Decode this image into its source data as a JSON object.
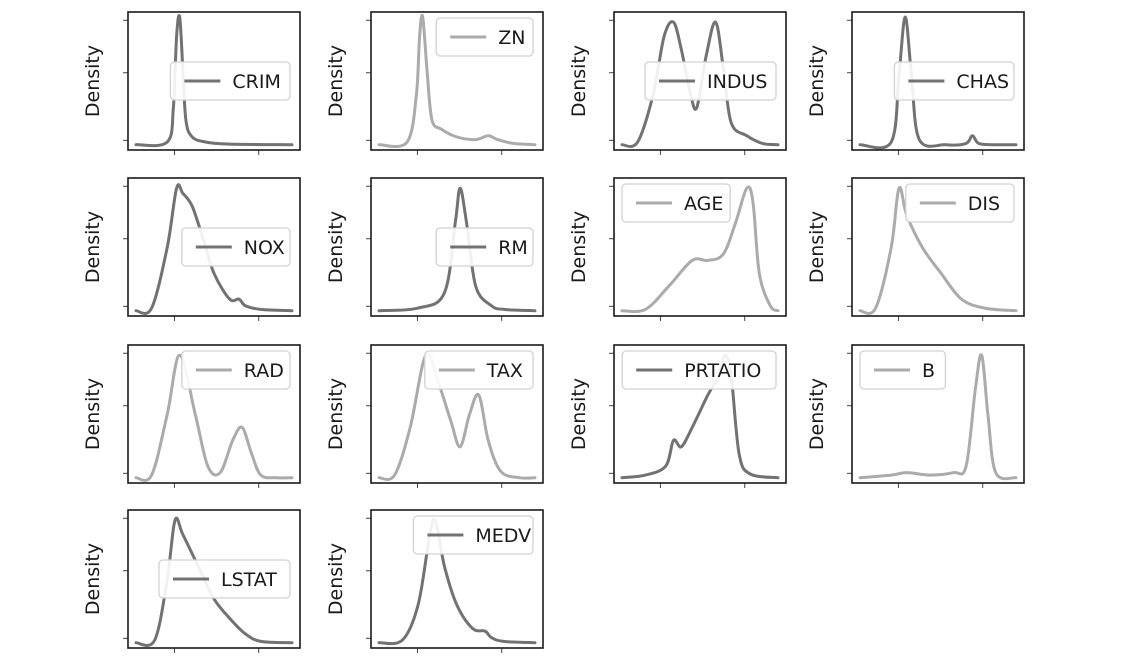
{
  "figure": {
    "ylabel": "Density"
  },
  "colors": {
    "dark": "#727272",
    "light": "#ababab"
  },
  "chart_data": [
    {
      "type": "line",
      "series": [
        {
          "name": "CRIM",
          "shade": "dark",
          "shape": [
            [
              0,
              0.01
            ],
            [
              0.2,
              0.03
            ],
            [
              0.24,
              0.3
            ],
            [
              0.26,
              0.85
            ],
            [
              0.28,
              1.0
            ],
            [
              0.3,
              0.6
            ],
            [
              0.32,
              0.2
            ],
            [
              0.36,
              0.07
            ],
            [
              0.45,
              0.03
            ],
            [
              0.6,
              0.015
            ],
            [
              1,
              0.01
            ]
          ]
        }
      ],
      "legend": "center-right",
      "grid": false
    },
    {
      "type": "line",
      "series": [
        {
          "name": "ZN",
          "shade": "light",
          "shape": [
            [
              0,
              0.01
            ],
            [
              0.18,
              0.03
            ],
            [
              0.24,
              0.4
            ],
            [
              0.26,
              0.85
            ],
            [
              0.28,
              1.0
            ],
            [
              0.31,
              0.55
            ],
            [
              0.34,
              0.2
            ],
            [
              0.4,
              0.13
            ],
            [
              0.5,
              0.07
            ],
            [
              0.62,
              0.05
            ],
            [
              0.7,
              0.08
            ],
            [
              0.76,
              0.05
            ],
            [
              0.86,
              0.02
            ],
            [
              1,
              0.01
            ]
          ]
        }
      ],
      "legend": "upper-right",
      "grid": false
    },
    {
      "type": "line",
      "series": [
        {
          "name": "INDUS",
          "shade": "dark",
          "shape": [
            [
              0,
              0.01
            ],
            [
              0.1,
              0.03
            ],
            [
              0.2,
              0.4
            ],
            [
              0.27,
              0.85
            ],
            [
              0.33,
              0.96
            ],
            [
              0.38,
              0.75
            ],
            [
              0.44,
              0.4
            ],
            [
              0.48,
              0.3
            ],
            [
              0.54,
              0.7
            ],
            [
              0.6,
              0.96
            ],
            [
              0.65,
              0.6
            ],
            [
              0.7,
              0.18
            ],
            [
              0.8,
              0.08
            ],
            [
              0.9,
              0.02
            ],
            [
              1,
              0.01
            ]
          ]
        }
      ],
      "legend": "center-right",
      "grid": false
    },
    {
      "type": "line",
      "series": [
        {
          "name": "CHAS",
          "shade": "dark",
          "shape": [
            [
              0,
              0.01
            ],
            [
              0.2,
              0.03
            ],
            [
              0.25,
              0.55
            ],
            [
              0.29,
              1.0
            ],
            [
              0.33,
              0.55
            ],
            [
              0.38,
              0.05
            ],
            [
              0.55,
              0.01
            ],
            [
              0.68,
              0.02
            ],
            [
              0.72,
              0.08
            ],
            [
              0.76,
              0.02
            ],
            [
              0.85,
              0.01
            ],
            [
              1,
              0.01
            ]
          ]
        }
      ],
      "legend": "center-right",
      "grid": false
    },
    {
      "type": "line",
      "series": [
        {
          "name": "NOX",
          "shade": "dark",
          "shape": [
            [
              0,
              0.01
            ],
            [
              0.1,
              0.03
            ],
            [
              0.2,
              0.5
            ],
            [
              0.26,
              0.96
            ],
            [
              0.3,
              0.92
            ],
            [
              0.36,
              0.82
            ],
            [
              0.43,
              0.57
            ],
            [
              0.5,
              0.3
            ],
            [
              0.6,
              0.1
            ],
            [
              0.66,
              0.1
            ],
            [
              0.7,
              0.05
            ],
            [
              0.8,
              0.02
            ],
            [
              1,
              0.01
            ]
          ]
        }
      ],
      "legend": "center-right",
      "grid": false
    },
    {
      "type": "line",
      "series": [
        {
          "name": "RM",
          "shade": "dark",
          "shape": [
            [
              0,
              0.01
            ],
            [
              0.25,
              0.03
            ],
            [
              0.42,
              0.15
            ],
            [
              0.49,
              0.7
            ],
            [
              0.52,
              0.96
            ],
            [
              0.56,
              0.7
            ],
            [
              0.62,
              0.2
            ],
            [
              0.72,
              0.05
            ],
            [
              0.8,
              0.02
            ],
            [
              1,
              0.01
            ]
          ]
        }
      ],
      "legend": "center-right",
      "grid": false
    },
    {
      "type": "line",
      "series": [
        {
          "name": "AGE",
          "shade": "light",
          "shape": [
            [
              0,
              0.01
            ],
            [
              0.15,
              0.02
            ],
            [
              0.3,
              0.2
            ],
            [
              0.45,
              0.4
            ],
            [
              0.55,
              0.4
            ],
            [
              0.65,
              0.45
            ],
            [
              0.73,
              0.7
            ],
            [
              0.8,
              0.96
            ],
            [
              0.84,
              0.85
            ],
            [
              0.88,
              0.3
            ],
            [
              0.95,
              0.05
            ],
            [
              1,
              0.01
            ]
          ]
        }
      ],
      "legend": "upper-left",
      "grid": false
    },
    {
      "type": "line",
      "series": [
        {
          "name": "DIS",
          "shade": "light",
          "shape": [
            [
              0,
              0.01
            ],
            [
              0.1,
              0.03
            ],
            [
              0.2,
              0.5
            ],
            [
              0.25,
              0.96
            ],
            [
              0.3,
              0.75
            ],
            [
              0.4,
              0.5
            ],
            [
              0.52,
              0.3
            ],
            [
              0.65,
              0.1
            ],
            [
              0.8,
              0.03
            ],
            [
              1,
              0.01
            ]
          ]
        }
      ],
      "legend": "upper-right",
      "grid": false
    },
    {
      "type": "line",
      "series": [
        {
          "name": "RAD",
          "shade": "light",
          "shape": [
            [
              0,
              0.01
            ],
            [
              0.1,
              0.03
            ],
            [
              0.2,
              0.5
            ],
            [
              0.28,
              0.96
            ],
            [
              0.38,
              0.5
            ],
            [
              0.46,
              0.1
            ],
            [
              0.54,
              0.05
            ],
            [
              0.62,
              0.3
            ],
            [
              0.68,
              0.4
            ],
            [
              0.74,
              0.2
            ],
            [
              0.8,
              0.03
            ],
            [
              0.9,
              0.01
            ],
            [
              1,
              0.01
            ]
          ]
        }
      ],
      "legend": "upper-right",
      "grid": false
    },
    {
      "type": "line",
      "series": [
        {
          "name": "TAX",
          "shade": "light",
          "shape": [
            [
              0,
              0.01
            ],
            [
              0.1,
              0.03
            ],
            [
              0.2,
              0.4
            ],
            [
              0.3,
              0.96
            ],
            [
              0.38,
              0.75
            ],
            [
              0.46,
              0.45
            ],
            [
              0.52,
              0.25
            ],
            [
              0.58,
              0.5
            ],
            [
              0.64,
              0.65
            ],
            [
              0.7,
              0.3
            ],
            [
              0.78,
              0.06
            ],
            [
              0.9,
              0.01
            ],
            [
              1,
              0.01
            ]
          ]
        }
      ],
      "legend": "upper-right",
      "grid": false
    },
    {
      "type": "line",
      "series": [
        {
          "name": "PRTATIO",
          "shade": "dark",
          "shape": [
            [
              0,
              0.01
            ],
            [
              0.15,
              0.03
            ],
            [
              0.28,
              0.1
            ],
            [
              0.33,
              0.3
            ],
            [
              0.38,
              0.25
            ],
            [
              0.45,
              0.4
            ],
            [
              0.55,
              0.65
            ],
            [
              0.62,
              0.8
            ],
            [
              0.66,
              0.96
            ],
            [
              0.7,
              0.8
            ],
            [
              0.75,
              0.2
            ],
            [
              0.82,
              0.04
            ],
            [
              1,
              0.01
            ]
          ]
        }
      ],
      "legend": "upper-right",
      "grid": false
    },
    {
      "type": "line",
      "series": [
        {
          "name": "B",
          "shade": "light",
          "shape": [
            [
              0,
              0.01
            ],
            [
              0.2,
              0.03
            ],
            [
              0.3,
              0.05
            ],
            [
              0.45,
              0.03
            ],
            [
              0.6,
              0.05
            ],
            [
              0.68,
              0.1
            ],
            [
              0.74,
              0.7
            ],
            [
              0.78,
              0.96
            ],
            [
              0.82,
              0.5
            ],
            [
              0.87,
              0.05
            ],
            [
              1,
              0.01
            ]
          ]
        }
      ],
      "legend": "upper-left",
      "grid": false
    },
    {
      "type": "line",
      "series": [
        {
          "name": "LSTAT",
          "shade": "dark",
          "shape": [
            [
              0,
              0.01
            ],
            [
              0.12,
              0.03
            ],
            [
              0.2,
              0.5
            ],
            [
              0.25,
              0.96
            ],
            [
              0.3,
              0.85
            ],
            [
              0.4,
              0.6
            ],
            [
              0.5,
              0.35
            ],
            [
              0.6,
              0.2
            ],
            [
              0.7,
              0.08
            ],
            [
              0.8,
              0.02
            ],
            [
              1,
              0.01
            ]
          ]
        }
      ],
      "legend": "center-right",
      "grid": false
    },
    {
      "type": "line",
      "series": [
        {
          "name": "MEDV",
          "shade": "dark",
          "shape": [
            [
              0,
              0.01
            ],
            [
              0.15,
              0.03
            ],
            [
              0.25,
              0.3
            ],
            [
              0.32,
              0.8
            ],
            [
              0.36,
              0.96
            ],
            [
              0.42,
              0.6
            ],
            [
              0.5,
              0.3
            ],
            [
              0.6,
              0.12
            ],
            [
              0.68,
              0.1
            ],
            [
              0.72,
              0.05
            ],
            [
              0.8,
              0.02
            ],
            [
              1,
              0.01
            ]
          ]
        }
      ],
      "legend": "upper-right",
      "grid": false
    }
  ]
}
